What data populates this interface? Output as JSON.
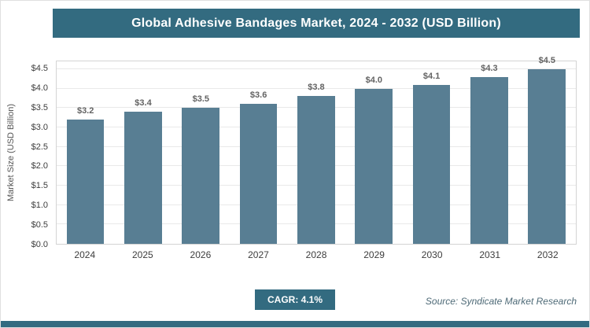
{
  "chart_data": {
    "type": "bar",
    "title": "Global Adhesive Bandages Market, 2024 - 2032 (USD Billion)",
    "categories": [
      "2024",
      "2025",
      "2026",
      "2027",
      "2028",
      "2029",
      "2030",
      "2031",
      "2032"
    ],
    "values": [
      3.2,
      3.4,
      3.5,
      3.6,
      3.8,
      4.0,
      4.1,
      4.3,
      4.5
    ],
    "bar_labels": [
      "$3.2",
      "$3.4",
      "$3.5",
      "$3.6",
      "$3.8",
      "$4.0",
      "$4.1",
      "$4.3",
      "$4.5"
    ],
    "xlabel": "",
    "ylabel": "Market Size (USD Billion)",
    "ylim": [
      0,
      4.7
    ],
    "yticks": [
      0,
      0.5,
      1.0,
      1.5,
      2.0,
      2.5,
      3.0,
      3.5,
      4.0,
      4.5
    ],
    "ytick_labels": [
      "$0.0",
      "$0.5",
      "$1.0",
      "$1.5",
      "$2.0",
      "$2.5",
      "$3.0",
      "$3.5",
      "$4.0",
      "$4.5"
    ],
    "grid": true,
    "legend": "none"
  },
  "footer": {
    "cagr_label": "CAGR: 4.1%",
    "source": "Source: Syndicate Market Research"
  },
  "colors": {
    "title_bg": "#336b80",
    "bar": "#587e93",
    "strip": "#336b80"
  }
}
